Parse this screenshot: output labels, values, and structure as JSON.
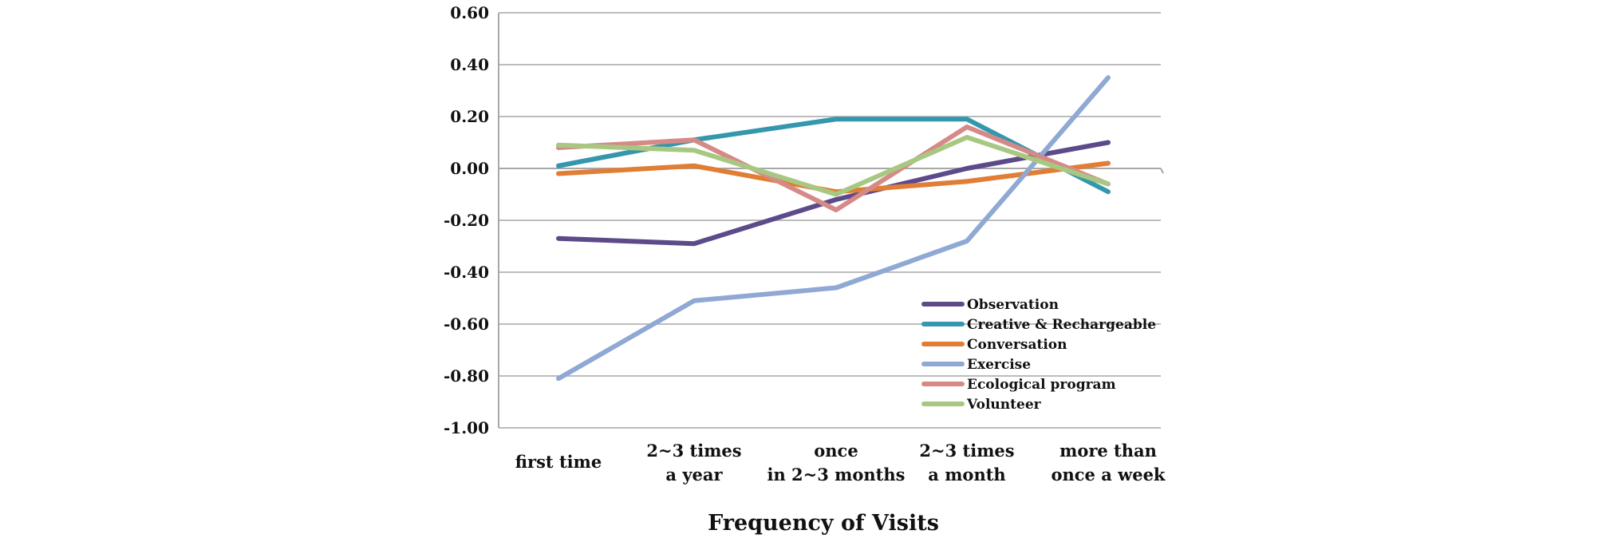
{
  "chart_data": {
    "type": "line",
    "title": "",
    "xlabel": "Frequency of Visits",
    "ylabel": "",
    "ylim": [
      -1.0,
      0.6
    ],
    "yticks": [
      "0.60",
      "0.40",
      "0.20",
      "0.00",
      "-0.20",
      "-0.40",
      "-0.60",
      "-0.80",
      "-1.00"
    ],
    "ytick_values": [
      0.6,
      0.4,
      0.2,
      0.0,
      -0.2,
      -0.4,
      -0.6,
      -0.8,
      -1.0
    ],
    "grid": true,
    "legend_position": "lower-right",
    "categories": [
      [
        "first time"
      ],
      [
        "2~3 times",
        "a year"
      ],
      [
        "once",
        "in 2~3 months"
      ],
      [
        "2~3 times",
        "a month"
      ],
      [
        "more than",
        "once a week"
      ]
    ],
    "series": [
      {
        "name": "Observation",
        "color": "#5d4a8a",
        "values": [
          -0.27,
          -0.29,
          -0.12,
          0.0,
          0.1
        ]
      },
      {
        "name": "Creative & Rechargeable",
        "color": "#3497ad",
        "values": [
          0.01,
          0.11,
          0.19,
          0.19,
          -0.09
        ]
      },
      {
        "name": "Conversation",
        "color": "#e07e35",
        "values": [
          -0.02,
          0.01,
          -0.09,
          -0.05,
          0.02
        ]
      },
      {
        "name": "Exercise",
        "color": "#8fa8d4",
        "values": [
          -0.81,
          -0.51,
          -0.46,
          -0.28,
          0.35
        ]
      },
      {
        "name": "Ecological program",
        "color": "#d68a88",
        "values": [
          0.08,
          0.11,
          -0.16,
          0.16,
          -0.06
        ]
      },
      {
        "name": "Volunteer",
        "color": "#a8c882",
        "values": [
          0.09,
          0.07,
          -0.1,
          0.12,
          -0.06
        ]
      }
    ]
  }
}
